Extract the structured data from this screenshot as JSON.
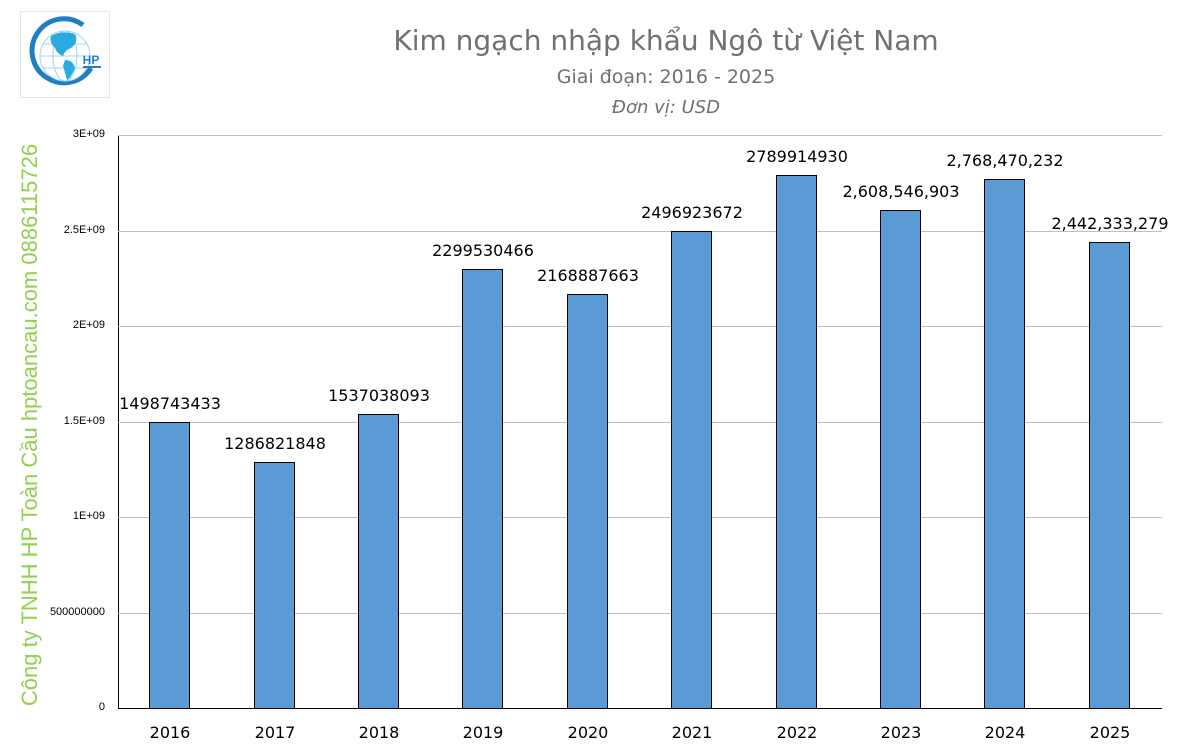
{
  "header": {
    "title": "Kim ngạch nhập khẩu Ngô từ Việt Nam",
    "subtitle": "Giai đoạn: 2016 - 2025",
    "unit": "Đơn vị: USD",
    "logo_text": "HP"
  },
  "watermark": "Công ty TNHH HP Toàn Cầu hptoancau.com 0886115726",
  "colors": {
    "bar": "#5b9bd5",
    "watermark": "#92d050",
    "title": "#707070",
    "grid": "#bfbfbf"
  },
  "chart_data": {
    "type": "bar",
    "title": "Kim ngạch nhập khẩu Ngô từ Việt Nam",
    "subtitle": "Giai đoạn: 2016 - 2025",
    "unit": "Đơn vị: USD",
    "xlabel": "",
    "ylabel": "",
    "ylim": [
      0,
      3000000000
    ],
    "grid": true,
    "legend": "none",
    "categories": [
      "2016",
      "2017",
      "2018",
      "2019",
      "2020",
      "2021",
      "2022",
      "2023",
      "2024",
      "2025"
    ],
    "values": [
      1498743433,
      1286821848,
      1537038093,
      2299530466,
      2168887663,
      2496923672,
      2789914930,
      2608546903,
      2768470232,
      2442333279
    ],
    "data_labels": [
      "1498743433",
      "1286821848",
      "1537038093",
      "2299530466",
      "2168887663",
      "2496923672",
      "2789914930",
      "2,608,546,903",
      "2,768,470,232",
      "2,442,333,279"
    ],
    "y_ticks": [
      {
        "value": 0,
        "label": "0"
      },
      {
        "value": 500000000,
        "label": "500000000"
      },
      {
        "value": 1000000000,
        "label": "1E+09"
      },
      {
        "value": 1500000000,
        "label": "1.5E+09"
      },
      {
        "value": 2000000000,
        "label": "2E+09"
      },
      {
        "value": 2500000000,
        "label": "2.5E+09"
      },
      {
        "value": 3000000000,
        "label": "3E+09"
      }
    ]
  }
}
